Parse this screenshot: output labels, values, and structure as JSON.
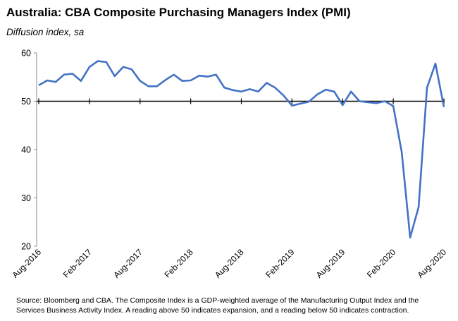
{
  "title": "Australia: CBA Composite Purchasing Managers Index (PMI)",
  "subtitle": "Diffusion index, sa",
  "source_lines": [
    "Source: Bloomberg and CBA. The Composite Index is a GDP-weighted average of the Manufacturing Output Index and the",
    "Services Business Activity Index.  A reading above 50 indicates expansion, and a reading below 50 indicates contraction."
  ],
  "colors": {
    "line": "#4472C4",
    "axis": "#000000"
  },
  "chart_data": {
    "type": "line",
    "title": "Australia: CBA Composite Purchasing Managers Index (PMI)",
    "ylabel": "Diffusion index, sa",
    "xlabel": "",
    "ylim": [
      20,
      60
    ],
    "yticks": [
      20,
      30,
      40,
      50,
      60
    ],
    "x_tick_labels": [
      "Aug-2016",
      "Feb-2017",
      "Aug-2017",
      "Feb-2018",
      "Aug-2018",
      "Feb-2019",
      "Aug-2019",
      "Feb-2020",
      "Aug-2020"
    ],
    "x_start": "2016-08",
    "x_end": "2020-08",
    "reference_line": 50,
    "grid": false,
    "series": [
      {
        "values": [
          53.3,
          54.3,
          54.0,
          55.5,
          55.7,
          54.2,
          57.1,
          58.3,
          58.1,
          55.2,
          57.1,
          56.6,
          54.2,
          53.1,
          53.1,
          54.4,
          55.5,
          54.2,
          54.3,
          55.3,
          55.1,
          55.5,
          52.8,
          52.3,
          52.0,
          52.5,
          52.0,
          53.8,
          52.8,
          51.2,
          49.1,
          49.5,
          49.9,
          51.4,
          52.4,
          52.0,
          49.2,
          52.0,
          50.0,
          49.8,
          49.6,
          50.0,
          49.0,
          39.5,
          21.8,
          28.1,
          52.8,
          57.8,
          48.8
        ]
      }
    ]
  }
}
